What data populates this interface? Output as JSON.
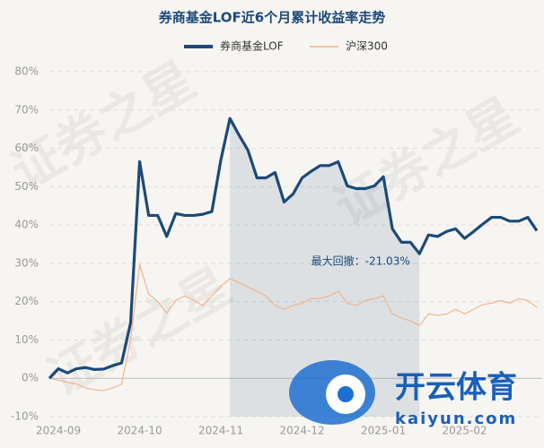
{
  "chart_data": {
    "type": "line",
    "title": "券商基金LOF近6个月累计收益率走势",
    "categories": [
      null,
      "2024-09",
      null,
      null,
      null,
      null,
      null,
      null,
      null,
      null,
      "2024-10",
      null,
      null,
      null,
      null,
      null,
      null,
      null,
      null,
      "2024-11",
      null,
      null,
      null,
      null,
      null,
      null,
      null,
      null,
      "2024-12",
      null,
      null,
      null,
      null,
      null,
      null,
      null,
      null,
      "2025-01",
      null,
      null,
      null,
      null,
      null,
      null,
      null,
      null,
      "2025-02",
      null,
      null,
      null,
      null,
      null,
      null,
      null,
      null
    ],
    "series": [
      {
        "name": "券商基金LOF",
        "color": "#1c4a78",
        "values": [
          0,
          2.5,
          1.4,
          2.5,
          2.8,
          2.3,
          2.4,
          3.3,
          4,
          14.5,
          56.5,
          42.5,
          42.5,
          37,
          43,
          42.5,
          42.5,
          42.8,
          43.5,
          57,
          67.8,
          63.5,
          59.5,
          52.3,
          52.3,
          53.7,
          46,
          48.1,
          52.3,
          54,
          55.5,
          55.5,
          56.5,
          50.2,
          49.5,
          49.5,
          50.2,
          52.6,
          39,
          35.5,
          35.5,
          32.5,
          37.4,
          37,
          38.3,
          39,
          36.5,
          38.3,
          40.2,
          42,
          42,
          41,
          41,
          42,
          38.5
        ]
      },
      {
        "name": "沪深300",
        "color": "#f0b48a",
        "values": [
          0,
          -0.5,
          -1,
          -1.5,
          -2.5,
          -3,
          -3.2,
          -2.5,
          -1.5,
          10,
          29.7,
          22,
          20,
          17,
          20.3,
          21.5,
          20.3,
          19,
          21.5,
          24,
          26,
          25,
          23.8,
          22.7,
          21.5,
          19,
          18,
          19,
          19.6,
          20.8,
          20.8,
          21.5,
          22.7,
          19.6,
          19,
          20.3,
          20.8,
          21.5,
          16.8,
          15.7,
          15,
          13.8,
          16.8,
          16.4,
          16.8,
          18,
          16.8,
          18,
          19.2,
          19.6,
          20.3,
          19.6,
          20.8,
          20.3,
          18.5
        ]
      }
    ],
    "ylim": [
      -10,
      80
    ],
    "yticks": [
      {
        "value": -10,
        "label": "-10%"
      },
      {
        "value": 0,
        "label": "0%"
      },
      {
        "value": 10,
        "label": "10%"
      },
      {
        "value": 20,
        "label": "20%"
      },
      {
        "value": 30,
        "label": "30%"
      },
      {
        "value": 40,
        "label": "40%"
      },
      {
        "value": 50,
        "label": "50%"
      },
      {
        "value": 60,
        "label": "60%"
      },
      {
        "value": 70,
        "label": "70%"
      },
      {
        "value": 80,
        "label": "80%"
      }
    ],
    "grid": true,
    "annotation": "最大回撤：-21.03%",
    "watermark": "证券之星",
    "logo_name": "开云体育",
    "logo_url": "kaiyun.com"
  }
}
